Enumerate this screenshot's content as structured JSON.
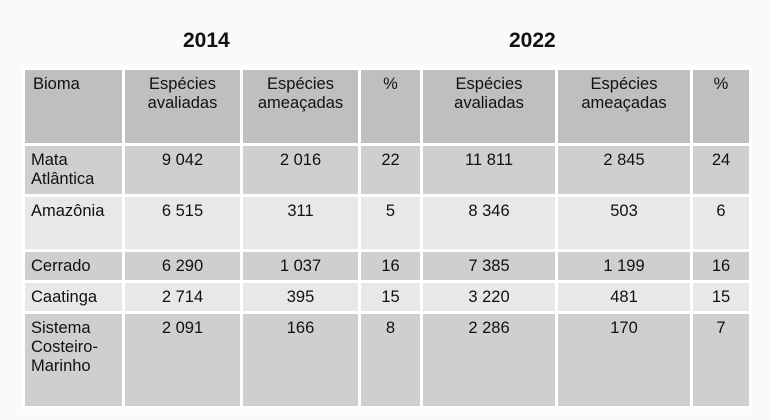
{
  "years": {
    "left": "2014",
    "right": "2022"
  },
  "headers": [
    "Bioma",
    "Espécies avaliadas",
    "Espécies ameaçadas",
    "%",
    "Espécies avaliadas",
    "Espécies ameaçadas",
    "%"
  ],
  "rows": [
    {
      "bioma": "Mata Atlântica",
      "aval2014": "9 042",
      "amea2014": "2 016",
      "pct2014": "22",
      "aval2022": "11 811",
      "amea2022": "2 845",
      "pct2022": "24"
    },
    {
      "bioma": "Amazônia",
      "aval2014": "6 515",
      "amea2014": "311",
      "pct2014": "5",
      "aval2022": "8 346",
      "amea2022": "503",
      "pct2022": "6"
    },
    {
      "bioma": "Cerrado",
      "aval2014": "6 290",
      "amea2014": "1 037",
      "pct2014": "16",
      "aval2022": "7 385",
      "amea2022": "1 199",
      "pct2022": "16"
    },
    {
      "bioma": "Caatinga",
      "aval2014": "2 714",
      "amea2014": "395",
      "pct2014": "15",
      "aval2022": "3 220",
      "amea2022": "481",
      "pct2022": "15"
    },
    {
      "bioma": "Sistema Costeiro-Marinho",
      "aval2014": "2 091",
      "amea2014": "166",
      "pct2014": "8",
      "aval2022": "2 286",
      "amea2022": "170",
      "pct2022": "7"
    }
  ],
  "colors": {
    "header_bg": "#bfbfbf",
    "row_dark": "#cfcfcf",
    "row_light": "#e8e8e8"
  }
}
